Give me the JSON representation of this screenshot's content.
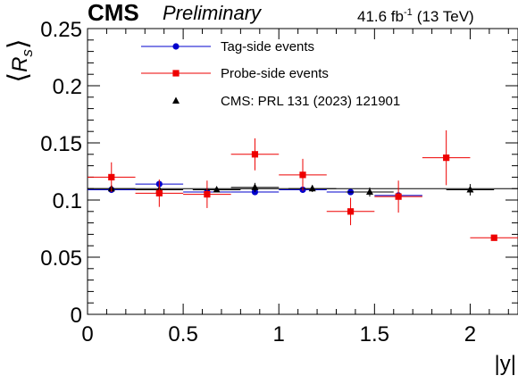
{
  "header": {
    "experiment": "CMS",
    "status": "Preliminary",
    "lumi_value": "41.6 fb",
    "lumi_exp": "-1",
    "energy": "(13 TeV)"
  },
  "chart_data": {
    "type": "scatter",
    "xlabel": "|y|",
    "ylabel": "⟨R_s⟩",
    "xlim": [
      0,
      2.25
    ],
    "ylim": [
      0,
      0.25
    ],
    "x_ticks": [
      0,
      0.5,
      1,
      1.5,
      2
    ],
    "x_tick_labels": [
      "0",
      "0.5",
      "1",
      "1.5",
      "2"
    ],
    "y_ticks": [
      0,
      0.05,
      0.1,
      0.15,
      0.2,
      0.25
    ],
    "y_tick_labels": [
      "0",
      "0.05",
      "0.1",
      "0.15",
      "0.2",
      "0.25"
    ],
    "legend_position": "top-center",
    "reference_line": 0.11,
    "series": [
      {
        "name": "Tag-side events",
        "color": "#0000cc",
        "marker": "circle",
        "x": [
          0.125,
          0.375,
          0.625,
          0.875,
          1.125,
          1.375,
          1.625
        ],
        "xerr": 0.125,
        "y": [
          0.109,
          0.114,
          0.107,
          0.107,
          0.109,
          0.107,
          0.104
        ],
        "yerr": [
          0.002,
          0.002,
          0.002,
          0.002,
          0.002,
          0.002,
          0.002
        ]
      },
      {
        "name": "Probe-side events",
        "color": "#ee0000",
        "marker": "square",
        "x": [
          0.125,
          0.375,
          0.625,
          0.875,
          1.125,
          1.375,
          1.625,
          1.875,
          2.125
        ],
        "xerr": 0.125,
        "y": [
          0.12,
          0.106,
          0.105,
          0.14,
          0.122,
          0.09,
          0.103,
          0.137,
          0.067
        ],
        "yerr": [
          0.013,
          0.012,
          0.012,
          0.014,
          0.014,
          0.012,
          0.014,
          0.024,
          0.002
        ]
      },
      {
        "name": "CMS: PRL 131 (2023) 121901",
        "color": "#000000",
        "marker": "triangle",
        "x": [
          0.125,
          0.375,
          0.675,
          0.875,
          1.175,
          1.475,
          2.0
        ],
        "xerr": 0.125,
        "y": [
          0.11,
          0.109,
          0.109,
          0.111,
          0.11,
          0.107,
          0.109
        ],
        "yerr": [
          0.002,
          0.002,
          0.002,
          0.004,
          0.003,
          0.004,
          0.005
        ]
      }
    ]
  }
}
